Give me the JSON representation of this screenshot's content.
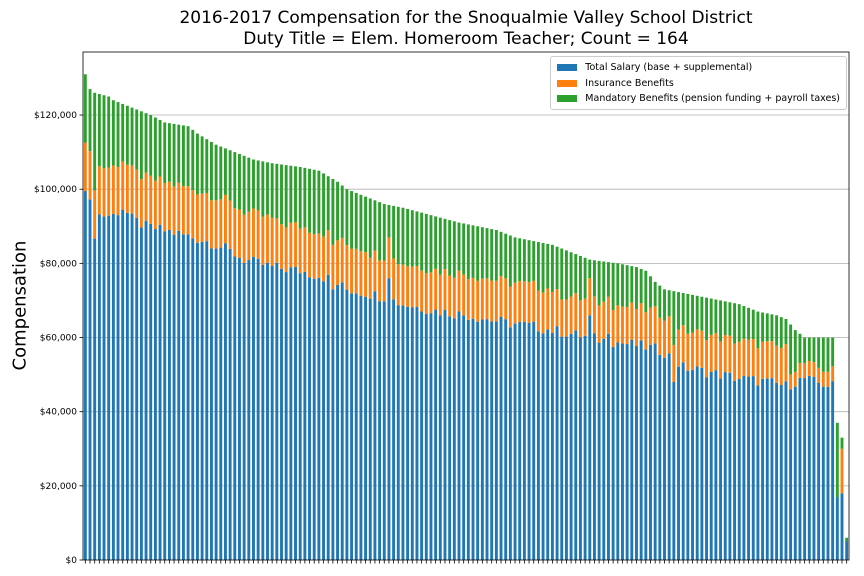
{
  "title_line1": "2016-2017 Compensation for the Snoqualmie Valley School District",
  "title_line2": "Duty Title = Elem. Homeroom Teacher; Count = 164",
  "colors": {
    "salary": "#1f77b4",
    "insurance": "#ff7f0e",
    "mandatory": "#2ca02c"
  },
  "chart_data": {
    "type": "bar",
    "stacked": true,
    "title": "2016-2017 Compensation for the Snoqualmie Valley School District\nDuty Title = Elem. Homeroom Teacher; Count = 164",
    "xlabel": "",
    "ylabel": "Compensation",
    "ylim": [
      0,
      137000
    ],
    "yticks": [
      0,
      20000,
      40000,
      60000,
      80000,
      100000,
      120000
    ],
    "ytick_labels": [
      "$0",
      "$20,000",
      "$40,000",
      "$60,000",
      "$80,000",
      "$100,000",
      "$120,000"
    ],
    "grid": "y",
    "legend_position": "top-right",
    "count": 164,
    "totals_keypoints": [
      [
        0,
        131000
      ],
      [
        1,
        127000
      ],
      [
        2,
        126000
      ],
      [
        5,
        125000
      ],
      [
        6,
        124000
      ],
      [
        8,
        123000
      ],
      [
        10,
        122000
      ],
      [
        12,
        121000
      ],
      [
        14,
        120000
      ],
      [
        17,
        118000
      ],
      [
        22,
        117000
      ],
      [
        24,
        115000
      ],
      [
        28,
        112000
      ],
      [
        32,
        110000
      ],
      [
        36,
        108000
      ],
      [
        40,
        107000
      ],
      [
        46,
        106000
      ],
      [
        50,
        105000
      ],
      [
        54,
        102000
      ],
      [
        56,
        100000
      ],
      [
        60,
        98000
      ],
      [
        64,
        96000
      ],
      [
        68,
        95000
      ],
      [
        74,
        93000
      ],
      [
        80,
        91000
      ],
      [
        88,
        89000
      ],
      [
        92,
        87000
      ],
      [
        96,
        86000
      ],
      [
        100,
        85000
      ],
      [
        104,
        83000
      ],
      [
        108,
        81000
      ],
      [
        114,
        80000
      ],
      [
        118,
        79000
      ],
      [
        120,
        78000
      ],
      [
        122,
        75000
      ],
      [
        124,
        73000
      ],
      [
        128,
        72000
      ],
      [
        132,
        71000
      ],
      [
        136,
        70000
      ],
      [
        140,
        69000
      ],
      [
        142,
        68000
      ],
      [
        144,
        67000
      ],
      [
        148,
        66000
      ],
      [
        150,
        65000
      ],
      [
        152,
        62000
      ],
      [
        154,
        60000
      ],
      [
        160,
        60000
      ],
      [
        161,
        37000
      ],
      [
        162,
        33000
      ],
      [
        163,
        6000
      ]
    ],
    "salary_keypoints": [
      [
        0,
        101000
      ],
      [
        1,
        96000
      ],
      [
        2,
        88000
      ],
      [
        3,
        93000
      ],
      [
        6,
        93000
      ],
      [
        8,
        95000
      ],
      [
        10,
        92000
      ],
      [
        13,
        90000
      ],
      [
        20,
        88000
      ],
      [
        26,
        86000
      ],
      [
        30,
        84000
      ],
      [
        34,
        81000
      ],
      [
        40,
        79000
      ],
      [
        46,
        78000
      ],
      [
        52,
        76000
      ],
      [
        56,
        73000
      ],
      [
        60,
        72000
      ],
      [
        64,
        71000
      ],
      [
        68,
        69000
      ],
      [
        72,
        68000
      ],
      [
        76,
        67000
      ],
      [
        82,
        66000
      ],
      [
        86,
        65000
      ],
      [
        90,
        64000
      ],
      [
        96,
        63000
      ],
      [
        100,
        62000
      ],
      [
        104,
        61000
      ],
      [
        108,
        60000
      ],
      [
        112,
        59000
      ],
      [
        118,
        58000
      ],
      [
        122,
        57000
      ],
      [
        124,
        56000
      ],
      [
        128,
        52000
      ],
      [
        132,
        51000
      ],
      [
        136,
        50000
      ],
      [
        140,
        49000
      ],
      [
        146,
        48000
      ],
      [
        150,
        47000
      ],
      [
        154,
        49000
      ],
      [
        156,
        48000
      ],
      [
        160,
        47000
      ],
      [
        161,
        17000
      ],
      [
        162,
        18000
      ],
      [
        163,
        5000
      ]
    ],
    "insurance_keypoints": [
      [
        0,
        13000
      ],
      [
        40,
        13000
      ],
      [
        41,
        12000
      ],
      [
        60,
        12000
      ],
      [
        61,
        11000
      ],
      [
        100,
        11000
      ],
      [
        101,
        10000
      ],
      [
        150,
        10000
      ],
      [
        151,
        4000
      ],
      [
        160,
        4000
      ],
      [
        161,
        0
      ],
      [
        162,
        12000
      ],
      [
        163,
        0
      ]
    ],
    "outliers": [
      {
        "index": 53,
        "salary": 73000
      },
      {
        "index": 65,
        "salary": 76000
      },
      {
        "index": 108,
        "salary": 66000
      },
      {
        "index": 112,
        "salary": 61000
      },
      {
        "index": 126,
        "salary": 48000
      }
    ],
    "series": [
      {
        "name": "Total Salary (base + supplemental)",
        "color": "#1f77b4"
      },
      {
        "name": "Insurance Benefits",
        "color": "#ff7f0e"
      },
      {
        "name": "Mandatory Benefits (pension funding + payroll taxes)",
        "color": "#2ca02c"
      }
    ]
  }
}
